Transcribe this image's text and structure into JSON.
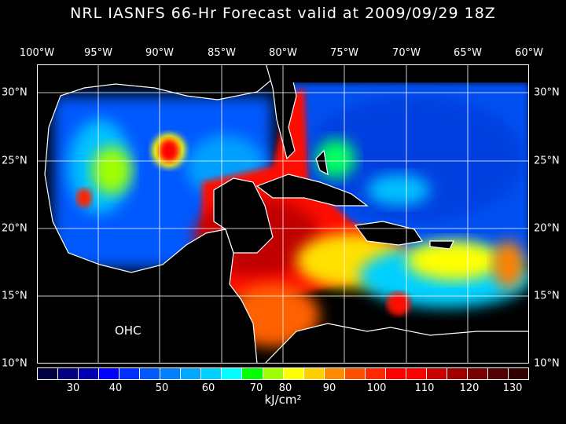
{
  "title": "NRL IASNFS  66-Hr Forecast valid at 2009/09/29 18Z",
  "lon_labels": [
    "100°W",
    "95°W",
    "90°W",
    "85°W",
    "80°W",
    "75°W",
    "70°W",
    "65°W",
    "60°W"
  ],
  "lat_labels": [
    "30°N",
    "25°N",
    "20°N",
    "15°N",
    "10°N"
  ],
  "field_label": "OHC",
  "colorbar": {
    "unit": "kJ/cm²",
    "ticks": [
      "30",
      "40",
      "50",
      "60",
      "70",
      "80",
      "90",
      "100",
      "110",
      "120",
      "130"
    ],
    "colors": [
      "#000040",
      "#000080",
      "#0000b0",
      "#0000ff",
      "#0030ff",
      "#0058ff",
      "#0080ff",
      "#00a8ff",
      "#00d0ff",
      "#00ffff",
      "#00ff00",
      "#a0ff00",
      "#ffff00",
      "#ffd000",
      "#ff8c00",
      "#ff5000",
      "#ff2800",
      "#ff0000",
      "#ff0000",
      "#c80000",
      "#a00000",
      "#780000",
      "#500000",
      "#300000"
    ]
  },
  "colors": {
    "land": "#000000",
    "coast": "#ffffff",
    "gulf": "#0060ff",
    "caribbean": "#ff1000"
  }
}
